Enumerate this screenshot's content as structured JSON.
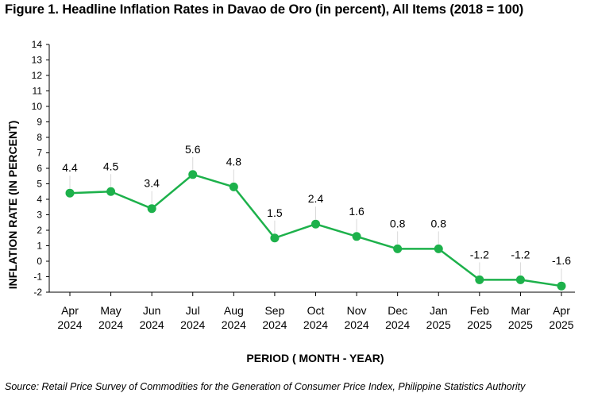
{
  "title": "Figure 1. Headline Inflation Rates in Davao de Oro (in percent), All Items (2018 = 100)",
  "source": "Source: Retail Price Survey of Commodities for the Generation of Consumer Price Index, Philippine Statistics Authority",
  "colors": {
    "series": "#1db14b",
    "axis": "#000000",
    "leader": "#d9d9d9"
  },
  "chart_data": {
    "type": "line",
    "title": "Figure 1. Headline Inflation Rates in Davao de Oro (in percent), All Items (2018 = 100)",
    "xlabel": "PERIOD ( MONTH - YEAR)",
    "ylabel": "INFLATION RATE (IN PERCENT)",
    "ylim": [
      -2,
      14
    ],
    "yticks": [
      -2,
      -1,
      0,
      1,
      2,
      3,
      4,
      5,
      6,
      7,
      8,
      9,
      10,
      11,
      12,
      13,
      14
    ],
    "grid": false,
    "legend": "none",
    "categories": [
      [
        "Apr",
        "2024"
      ],
      [
        "May",
        "2024"
      ],
      [
        "Jun",
        "2024"
      ],
      [
        "Jul",
        "2024"
      ],
      [
        "Aug",
        "2024"
      ],
      [
        "Sep",
        "2024"
      ],
      [
        "Oct",
        "2024"
      ],
      [
        "Nov",
        "2024"
      ],
      [
        "Dec",
        "2024"
      ],
      [
        "Jan",
        "2025"
      ],
      [
        "Feb",
        "2025"
      ],
      [
        "Mar",
        "2025"
      ],
      [
        "Apr",
        "2025"
      ]
    ],
    "series": [
      {
        "values": [
          4.4,
          4.5,
          3.4,
          5.6,
          4.8,
          1.5,
          2.4,
          1.6,
          0.8,
          0.8,
          -1.2,
          -1.2,
          -1.6
        ],
        "labels": [
          "4.4",
          "4.5",
          "3.4",
          "5.6",
          "4.8",
          "1.5",
          "2.4",
          "1.6",
          "0.8",
          "0.8",
          "-1.2",
          "-1.2",
          "-1.6"
        ]
      }
    ]
  }
}
